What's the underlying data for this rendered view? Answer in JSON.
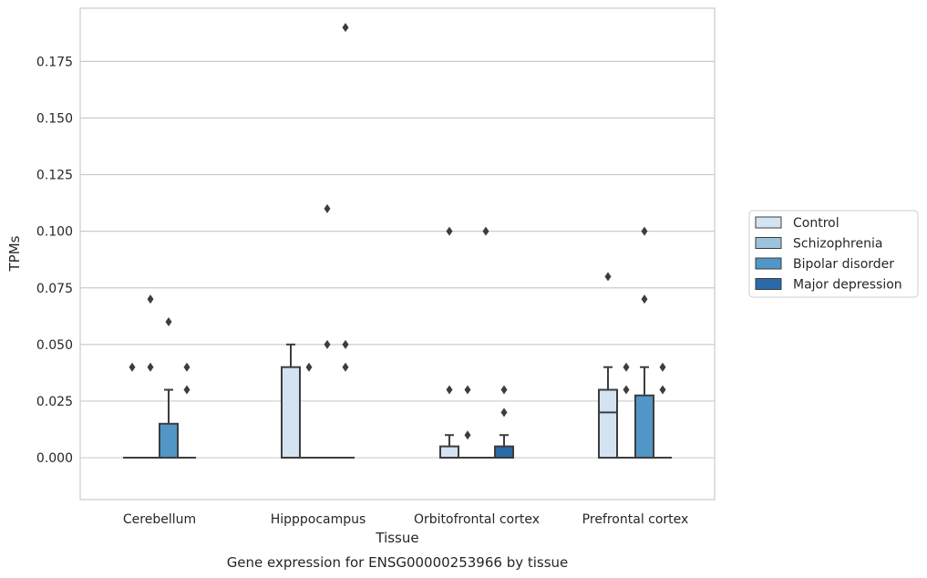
{
  "chart_data": {
    "type": "boxplot",
    "title": "Gene expression for ENSG00000253966 by tissue",
    "xlabel": "Tissue",
    "ylabel": "TPMs",
    "ylim": [
      -0.0185,
      0.1985
    ],
    "yticks": [
      "0.000",
      "0.025",
      "0.050",
      "0.075",
      "0.100",
      "0.125",
      "0.150",
      "0.175"
    ],
    "ytick_values": [
      0,
      0.025,
      0.05,
      0.075,
      0.1,
      0.125,
      0.15,
      0.175
    ],
    "grid": true,
    "legend_position": "right",
    "categories": [
      "Cerebellum",
      "Hipppocampus",
      "Orbitofrontal cortex",
      "Prefrontal cortex"
    ],
    "series": [
      {
        "name": "Control",
        "color": "#d4e3f2",
        "boxes": [
          {
            "min": 0,
            "q1": 0,
            "median": 0,
            "q3": 0,
            "max": 0,
            "outliers": [
              0.04
            ]
          },
          {
            "min": 0,
            "q1": 0,
            "median": 0,
            "q3": 0.04,
            "max": 0.05,
            "outliers": []
          },
          {
            "min": 0,
            "q1": 0,
            "median": 0,
            "q3": 0.005,
            "max": 0.01,
            "outliers": [
              0.1,
              0.03
            ]
          },
          {
            "min": 0,
            "q1": 0,
            "median": 0.02,
            "q3": 0.03,
            "max": 0.04,
            "outliers": [
              0.08
            ]
          }
        ]
      },
      {
        "name": "Schizophrenia",
        "color": "#9cc4dd",
        "boxes": [
          {
            "min": 0,
            "q1": 0,
            "median": 0,
            "q3": 0,
            "max": 0,
            "outliers": [
              0.07,
              0.04
            ]
          },
          {
            "min": 0,
            "q1": 0,
            "median": 0,
            "q3": 0,
            "max": 0,
            "outliers": [
              0.04
            ]
          },
          {
            "min": 0,
            "q1": 0,
            "median": 0,
            "q3": 0,
            "max": 0,
            "outliers": [
              0.03,
              0.01
            ]
          },
          {
            "min": 0,
            "q1": 0,
            "median": 0,
            "q3": 0,
            "max": 0,
            "outliers": [
              0.04,
              0.03
            ]
          }
        ]
      },
      {
        "name": "Bipolar disorder",
        "color": "#5196c6",
        "boxes": [
          {
            "min": 0,
            "q1": 0,
            "median": 0,
            "q3": 0.015,
            "max": 0.03,
            "outliers": [
              0.06
            ]
          },
          {
            "min": 0,
            "q1": 0,
            "median": 0,
            "q3": 0,
            "max": 0,
            "outliers": [
              0.11,
              0.05
            ]
          },
          {
            "min": 0,
            "q1": 0,
            "median": 0,
            "q3": 0,
            "max": 0,
            "outliers": [
              0.1
            ]
          },
          {
            "min": 0,
            "q1": 0,
            "median": 0,
            "q3": 0.0275,
            "max": 0.04,
            "outliers": [
              0.1,
              0.07
            ]
          }
        ]
      },
      {
        "name": "Major depression",
        "color": "#2b6aa8",
        "boxes": [
          {
            "min": 0,
            "q1": 0,
            "median": 0,
            "q3": 0,
            "max": 0,
            "outliers": [
              0.04,
              0.03
            ]
          },
          {
            "min": 0,
            "q1": 0,
            "median": 0,
            "q3": 0,
            "max": 0,
            "outliers": [
              0.19,
              0.05,
              0.04
            ]
          },
          {
            "min": 0,
            "q1": 0,
            "median": 0,
            "q3": 0.005,
            "max": 0.01,
            "outliers": [
              0.03,
              0.02
            ]
          },
          {
            "min": 0,
            "q1": 0,
            "median": 0,
            "q3": 0,
            "max": 0,
            "outliers": [
              0.04,
              0.03
            ]
          }
        ]
      }
    ]
  }
}
